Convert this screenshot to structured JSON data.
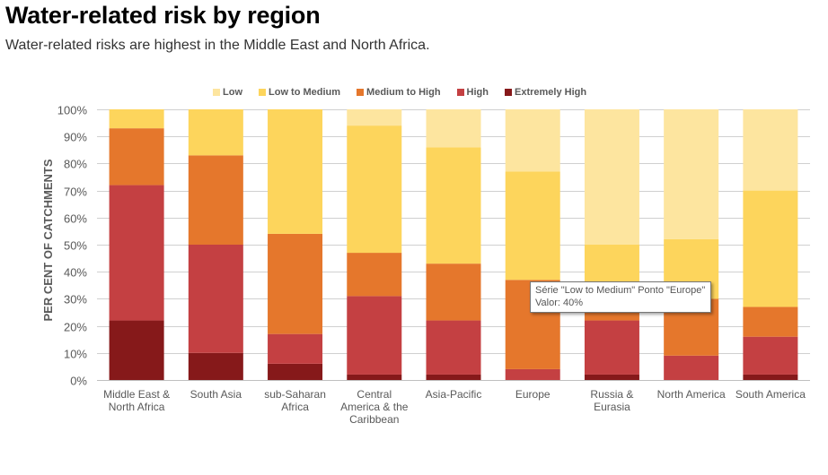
{
  "header": {
    "title": "Water-related risk by region",
    "subtitle": "Water-related risks are highest in the Middle East and North Africa."
  },
  "tooltip": {
    "line1": "Série \"Low to Medium\" Ponto \"Europe\"",
    "line2": "Valor: 40%"
  },
  "chart_data": {
    "type": "bar",
    "stacked": true,
    "title": "",
    "xlabel": "",
    "ylabel": "PER CENT OF CATCHMENTS",
    "ylim": [
      0,
      100
    ],
    "yticks": [
      "0%",
      "10%",
      "20%",
      "30%",
      "40%",
      "50%",
      "60%",
      "70%",
      "80%",
      "90%",
      "100%"
    ],
    "grid": true,
    "legend_position": "top",
    "categories": [
      [
        "Middle East &",
        "North Africa"
      ],
      [
        "South Asia"
      ],
      [
        "sub-Saharan",
        "Africa"
      ],
      [
        "Central",
        "America & the",
        "Caribbean"
      ],
      [
        "Asia-Pacific"
      ],
      [
        "Europe"
      ],
      [
        "Russia &",
        "Eurasia"
      ],
      [
        "North America"
      ],
      [
        "South America"
      ]
    ],
    "series": [
      {
        "name": "Extremely High",
        "color": "#86191A",
        "values": [
          22,
          10,
          6,
          2,
          2,
          0,
          2,
          0,
          2
        ]
      },
      {
        "name": "High",
        "color": "#C44042",
        "values": [
          50,
          40,
          11,
          29,
          20,
          4,
          20,
          9,
          14
        ]
      },
      {
        "name": "Medium to High",
        "color": "#E5772C",
        "values": [
          21,
          33,
          37,
          16,
          21,
          33,
          8,
          21,
          11
        ]
      },
      {
        "name": "Low to Medium",
        "color": "#FDD55C",
        "values": [
          7,
          17,
          46,
          47,
          43,
          40,
          20,
          22,
          43
        ]
      },
      {
        "name": "Low",
        "color": "#FDE59F",
        "values": [
          0,
          0,
          0,
          6,
          14,
          23,
          50,
          48,
          30
        ]
      }
    ],
    "legend_order": [
      "Low",
      "Low to Medium",
      "Medium to High",
      "High",
      "Extremely High"
    ]
  }
}
